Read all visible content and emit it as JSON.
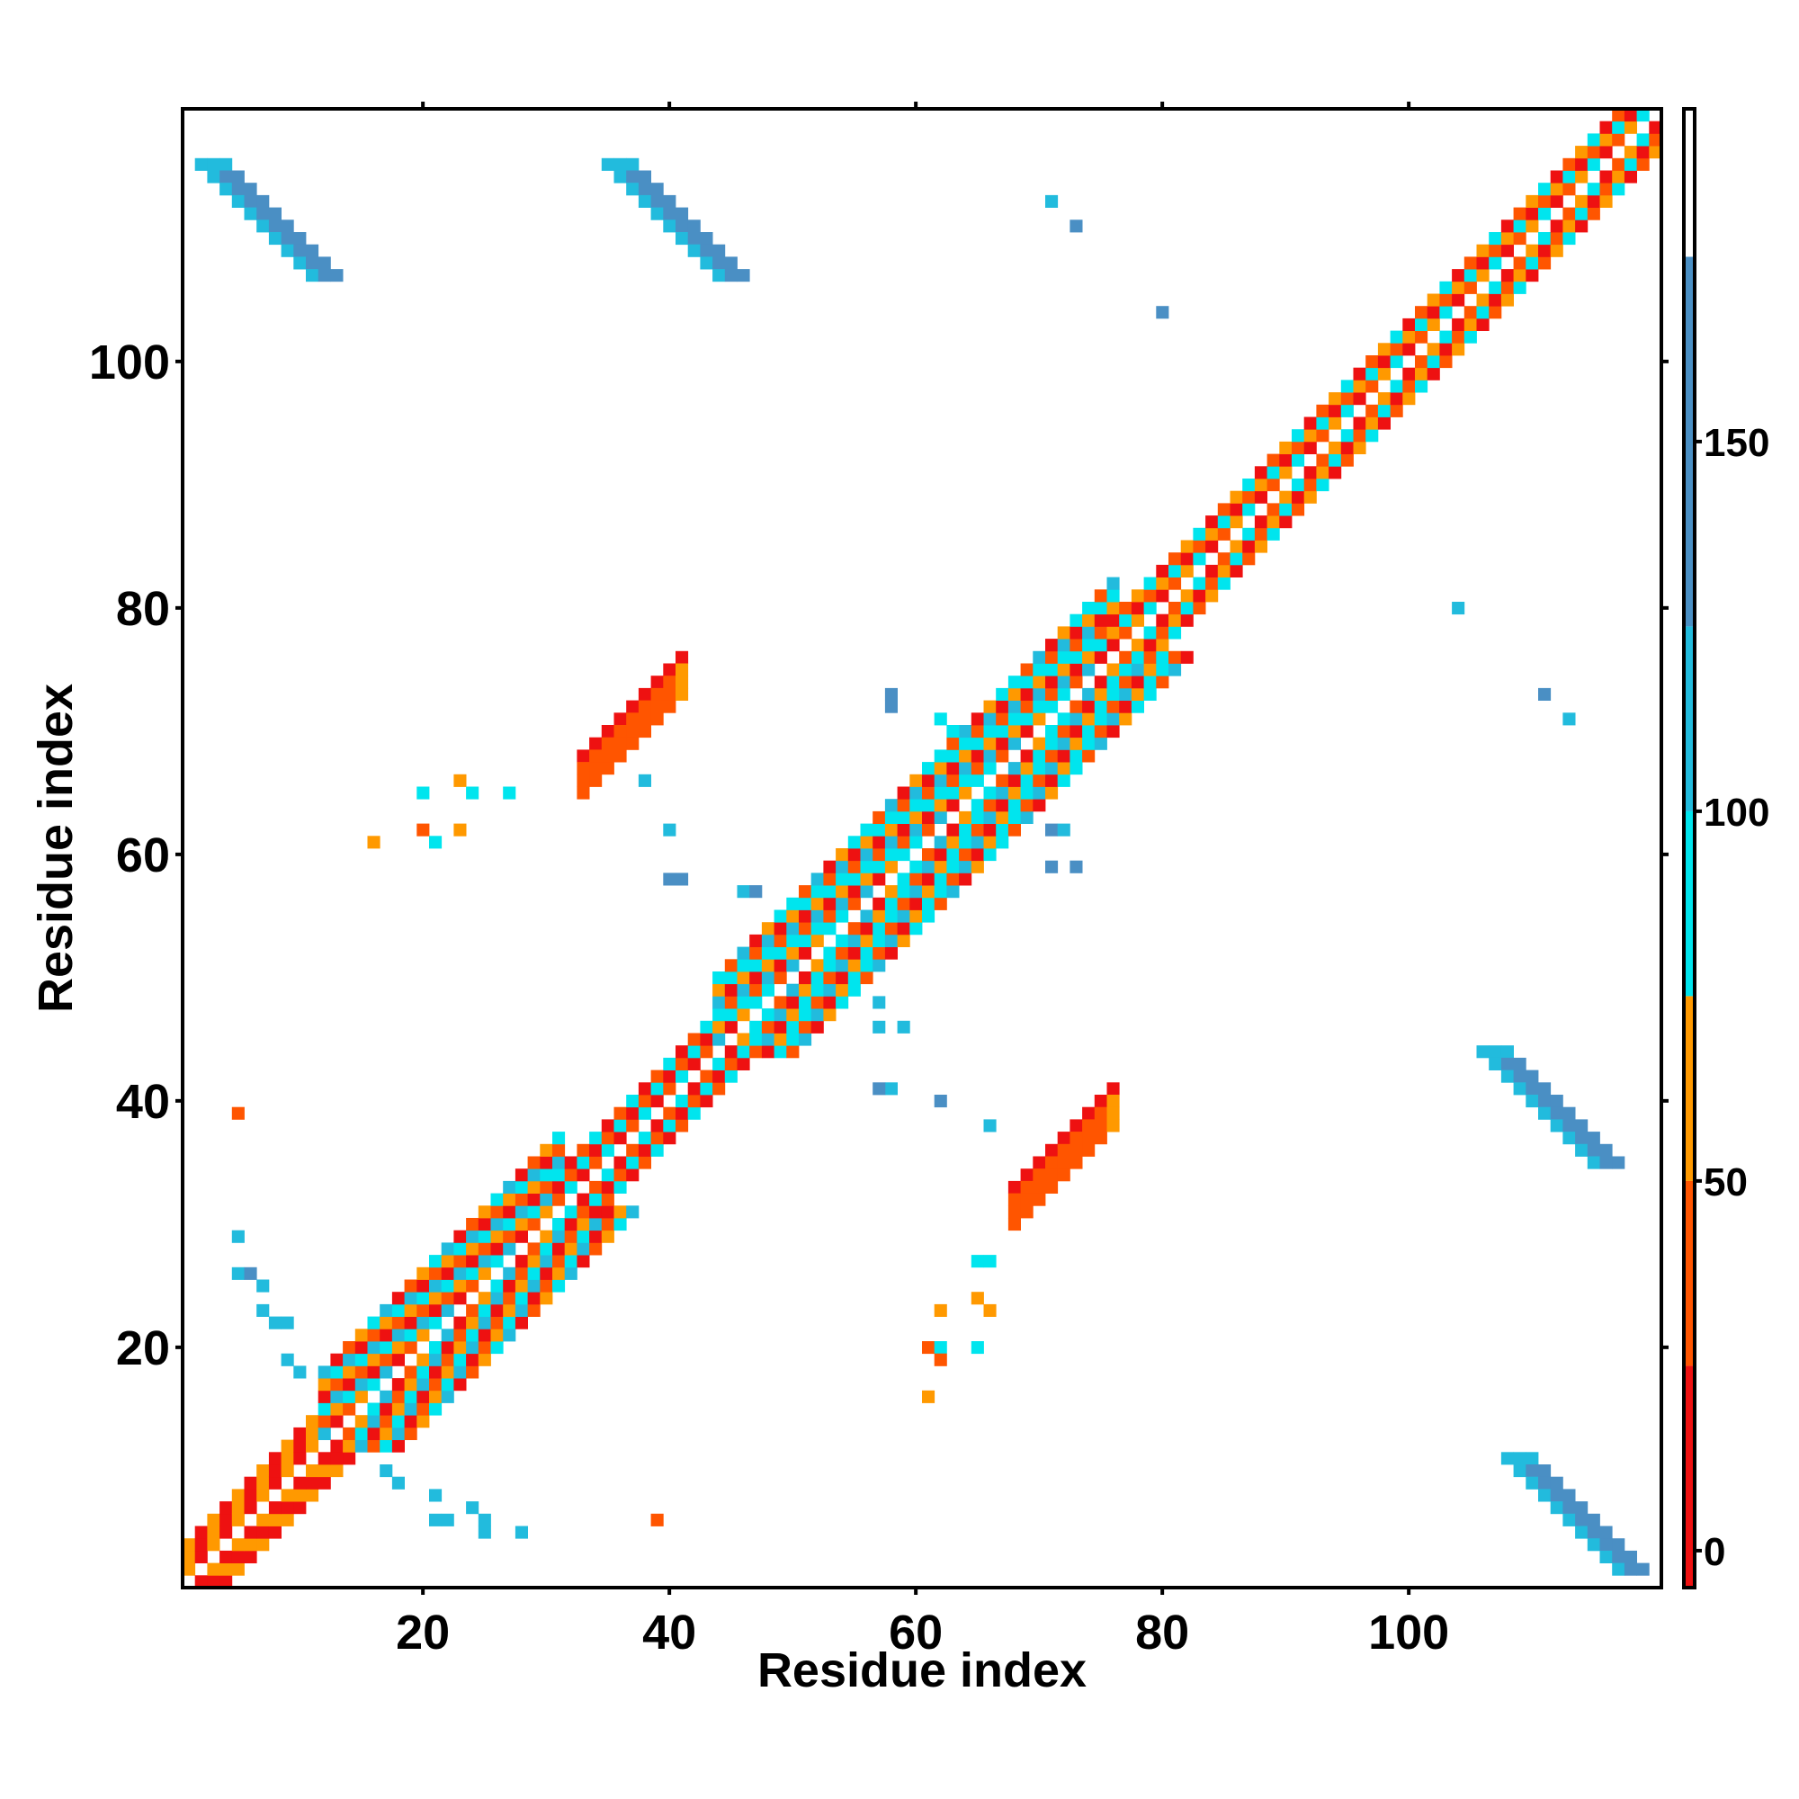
{
  "chart_data": {
    "type": "heatmap",
    "title": "",
    "xlabel": "Residue index",
    "ylabel": "Residue index",
    "xlim": [
      0.5,
      120.5
    ],
    "ylim": [
      0.5,
      120.5
    ],
    "x_ticks": [
      20,
      40,
      60,
      80,
      100
    ],
    "y_ticks": [
      20,
      40,
      60,
      80,
      100
    ],
    "colorbar": {
      "range": [
        -5,
        195
      ],
      "ticks": [
        0,
        50,
        100,
        150
      ],
      "segments": [
        {
          "from": -5,
          "to": 25,
          "color": "#ee1111"
        },
        {
          "from": 25,
          "to": 50,
          "color": "#ff5500"
        },
        {
          "from": 50,
          "to": 75,
          "color": "#ff9900"
        },
        {
          "from": 75,
          "to": 100,
          "color": "#00e5ee"
        },
        {
          "from": 100,
          "to": 125,
          "color": "#22bbdd"
        },
        {
          "from": 125,
          "to": 175,
          "color": "#4a8fc4"
        },
        {
          "from": 175,
          "to": 195,
          "color": "#ffffff"
        }
      ]
    },
    "colors": {
      "red": "#ee1111",
      "orange_red": "#ff5500",
      "orange": "#ff9900",
      "cyan": "#00e5ee",
      "light_blue": "#22bbdd",
      "steel_blue": "#4a8fc4"
    },
    "regions": {
      "diagonal_bands": [
        {
          "from": 1,
          "to": 12,
          "offsets": [
            1,
            2,
            3
          ],
          "pattern": [
            "red",
            "orange"
          ]
        },
        {
          "from": 12,
          "to": 31,
          "offsets": [
            1,
            2,
            3,
            4,
            5,
            6
          ],
          "pattern": [
            "orange",
            "cyan",
            "light_blue",
            "red",
            "orange_red"
          ]
        },
        {
          "from": 31,
          "to": 44,
          "offsets": [
            1,
            2,
            3
          ],
          "pattern": [
            "red",
            "orange_red",
            "cyan"
          ]
        },
        {
          "from": 44,
          "to": 76,
          "offsets": [
            1,
            2,
            3,
            4,
            5,
            6
          ],
          "pattern": [
            "cyan",
            "orange_red",
            "light_blue",
            "red",
            "orange",
            "cyan"
          ]
        },
        {
          "from": 76,
          "to": 120,
          "offsets": [
            1,
            2,
            3
          ],
          "pattern": [
            "red",
            "orange_red",
            "orange",
            "cyan"
          ]
        }
      ],
      "antiparallel_blocks": [
        {
          "x_start": 2,
          "y_start": 116,
          "length": 10,
          "width": 3
        },
        {
          "x_start": 35,
          "y_start": 116,
          "length": 10,
          "width": 3
        },
        {
          "x_start": 106,
          "y_start": 44,
          "length": 10,
          "width": 3
        },
        {
          "x_start": 108,
          "y_start": 11,
          "length": 10,
          "width": 3
        }
      ],
      "parallel_blocks": [
        {
          "x_start": 33,
          "y_start": 68,
          "length": 9,
          "width": 4
        },
        {
          "x_start": 68,
          "y_start": 33,
          "length": 9,
          "width": 4
        }
      ],
      "scattered_points": [
        [
          71,
          113,
          "light_blue"
        ],
        [
          73,
          111,
          "steel_blue"
        ],
        [
          80,
          104,
          "steel_blue"
        ],
        [
          104,
          80,
          "light_blue"
        ],
        [
          111,
          73,
          "steel_blue"
        ],
        [
          113,
          71,
          "light_blue"
        ],
        [
          20,
          65,
          "cyan"
        ],
        [
          23,
          66,
          "orange"
        ],
        [
          24,
          65,
          "cyan"
        ],
        [
          27,
          65,
          "cyan"
        ],
        [
          16,
          61,
          "orange"
        ],
        [
          20,
          62,
          "orange_red"
        ],
        [
          21,
          61,
          "cyan"
        ],
        [
          23,
          62,
          "orange"
        ],
        [
          38,
          66,
          "light_blue"
        ],
        [
          40,
          62,
          "light_blue"
        ],
        [
          40,
          58,
          "steel_blue"
        ],
        [
          41,
          58,
          "steel_blue"
        ],
        [
          46,
          57,
          "light_blue"
        ],
        [
          47,
          57,
          "steel_blue"
        ],
        [
          5,
          39,
          "orange_red"
        ],
        [
          58,
          73,
          "steel_blue"
        ],
        [
          58,
          72,
          "steel_blue"
        ],
        [
          62,
          71,
          "cyan"
        ],
        [
          63,
          70,
          "cyan"
        ],
        [
          71,
          62,
          "steel_blue"
        ],
        [
          72,
          62,
          "light_blue"
        ],
        [
          73,
          59,
          "steel_blue"
        ],
        [
          71,
          59,
          "steel_blue"
        ],
        [
          57,
          48,
          "light_blue"
        ],
        [
          57,
          46,
          "light_blue"
        ],
        [
          59,
          46,
          "light_blue"
        ],
        [
          58,
          41,
          "light_blue"
        ],
        [
          57,
          41,
          "steel_blue"
        ],
        [
          62,
          40,
          "steel_blue"
        ],
        [
          66,
          38,
          "light_blue"
        ],
        [
          5,
          29,
          "light_blue"
        ],
        [
          5,
          26,
          "light_blue"
        ],
        [
          6,
          26,
          "steel_blue"
        ],
        [
          7,
          25,
          "light_blue"
        ],
        [
          7,
          23,
          "light_blue"
        ],
        [
          8,
          22,
          "light_blue"
        ],
        [
          9,
          22,
          "light_blue"
        ],
        [
          9,
          19,
          "light_blue"
        ],
        [
          10,
          18,
          "light_blue"
        ],
        [
          65,
          27,
          "cyan"
        ],
        [
          66,
          27,
          "cyan"
        ],
        [
          62,
          23,
          "orange"
        ],
        [
          65,
          24,
          "orange"
        ],
        [
          66,
          23,
          "orange"
        ],
        [
          61,
          20,
          "orange_red"
        ],
        [
          62,
          20,
          "cyan"
        ],
        [
          62,
          19,
          "orange_red"
        ],
        [
          65,
          20,
          "cyan"
        ],
        [
          61,
          16,
          "orange"
        ],
        [
          17,
          10,
          "light_blue"
        ],
        [
          18,
          9,
          "light_blue"
        ],
        [
          21,
          8,
          "light_blue"
        ],
        [
          21,
          6,
          "light_blue"
        ],
        [
          22,
          6,
          "light_blue"
        ],
        [
          24,
          7,
          "light_blue"
        ],
        [
          25,
          6,
          "light_blue"
        ],
        [
          25,
          5,
          "light_blue"
        ],
        [
          28,
          5,
          "light_blue"
        ],
        [
          39,
          6,
          "orange_red"
        ]
      ]
    }
  }
}
